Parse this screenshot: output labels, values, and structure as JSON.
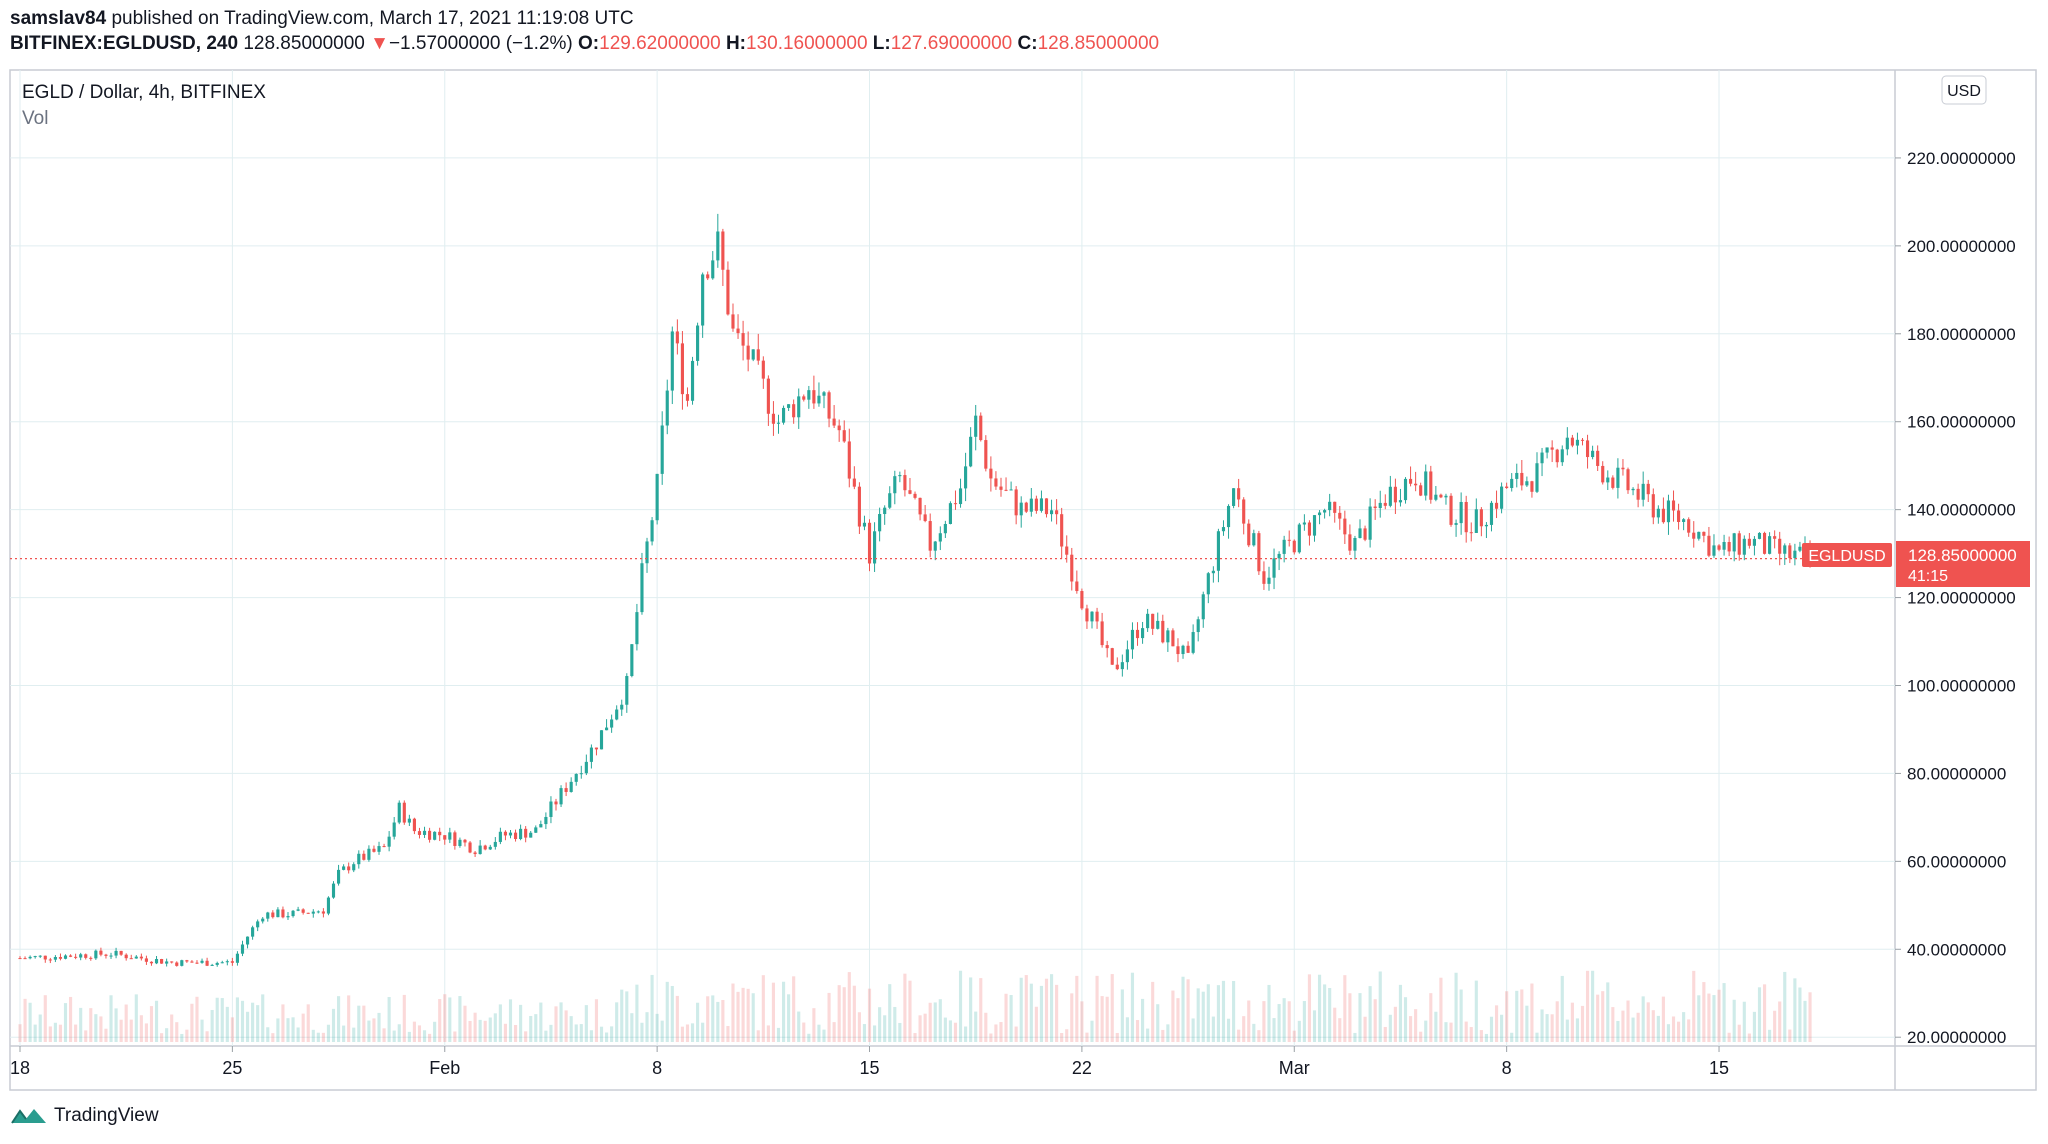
{
  "header": {
    "author": "samslav84",
    "published_text": "published on TradingView.com, March 17, 2021 11:19:08 UTC",
    "symbol": "BITFINEX:EGLDUSD, 240",
    "last": "128.85000000",
    "change_arrow": "▼",
    "change": "−1.57000000 (−1.2%)",
    "o_label": "O:",
    "o": "129.62000000",
    "h_label": "H:",
    "h": "130.16000000",
    "l_label": "L:",
    "l": "127.69000000",
    "c_label": "C:",
    "c": "128.85000000"
  },
  "pane": {
    "title": "EGLD / Dollar, 4h, BITFINEX",
    "vol_label": "Vol",
    "currency_button": "USD",
    "price_tag": "128.85000000",
    "countdown": "41:15",
    "symbol_tag": "EGLDUSD"
  },
  "logo": {
    "text": "TradingView"
  },
  "colors": {
    "up": "#26a69a",
    "down": "#ef5350",
    "grid": "#e0eef0",
    "text": "#131722"
  },
  "chart_data": {
    "type": "candlestick",
    "title": "EGLD / Dollar, 4h, BITFINEX",
    "y_ticks": [
      "220.00000000",
      "200.00000000",
      "180.00000000",
      "160.00000000",
      "140.00000000",
      "120.00000000",
      "100.00000000",
      "80.00000000",
      "60.00000000",
      "40.00000000",
      "20.00000000"
    ],
    "ylim": [
      18,
      240
    ],
    "x_ticks": [
      {
        "label": "18",
        "day": 0
      },
      {
        "label": "25",
        "day": 7
      },
      {
        "label": "Feb",
        "day": 14
      },
      {
        "label": "8",
        "day": 21
      },
      {
        "label": "15",
        "day": 28
      },
      {
        "label": "22",
        "day": 35
      },
      {
        "label": "Mar",
        "day": 42
      },
      {
        "label": "8",
        "day": 49
      },
      {
        "label": "15",
        "day": 56
      }
    ],
    "x_range_days": [
      0,
      61.8
    ],
    "last_close": 128.85,
    "grid": true,
    "series": [
      {
        "day": 0.0,
        "close": 38
      },
      {
        "day": 3.0,
        "close": 39
      },
      {
        "day": 5.0,
        "close": 37
      },
      {
        "day": 7.0,
        "close": 37
      },
      {
        "day": 7.5,
        "close": 43
      },
      {
        "day": 8.0,
        "close": 48
      },
      {
        "day": 9.0,
        "close": 48
      },
      {
        "day": 10.0,
        "close": 49
      },
      {
        "day": 10.5,
        "close": 57
      },
      {
        "day": 11.0,
        "close": 60
      },
      {
        "day": 12.0,
        "close": 63
      },
      {
        "day": 12.5,
        "close": 72
      },
      {
        "day": 13.0,
        "close": 67
      },
      {
        "day": 14.0,
        "close": 66
      },
      {
        "day": 15.0,
        "close": 63
      },
      {
        "day": 16.0,
        "close": 66
      },
      {
        "day": 17.0,
        "close": 67
      },
      {
        "day": 18.0,
        "close": 77
      },
      {
        "day": 19.0,
        "close": 87
      },
      {
        "day": 20.0,
        "close": 100
      },
      {
        "day": 20.5,
        "close": 125
      },
      {
        "day": 21.0,
        "close": 145
      },
      {
        "day": 21.5,
        "close": 180
      },
      {
        "day": 22.0,
        "close": 165
      },
      {
        "day": 22.5,
        "close": 195
      },
      {
        "day": 23.0,
        "close": 200
      },
      {
        "day": 23.5,
        "close": 180
      },
      {
        "day": 24.0,
        "close": 175
      },
      {
        "day": 25.0,
        "close": 160
      },
      {
        "day": 26.0,
        "close": 168
      },
      {
        "day": 27.0,
        "close": 158
      },
      {
        "day": 28.0,
        "close": 130
      },
      {
        "day": 28.5,
        "close": 140
      },
      {
        "day": 29.0,
        "close": 147
      },
      {
        "day": 30.0,
        "close": 132
      },
      {
        "day": 31.0,
        "close": 145
      },
      {
        "day": 31.5,
        "close": 160
      },
      {
        "day": 32.0,
        "close": 147
      },
      {
        "day": 33.0,
        "close": 140
      },
      {
        "day": 34.0,
        "close": 140
      },
      {
        "day": 35.0,
        "close": 120
      },
      {
        "day": 35.5,
        "close": 112
      },
      {
        "day": 36.0,
        "close": 103
      },
      {
        "day": 37.0,
        "close": 115
      },
      {
        "day": 38.0,
        "close": 110
      },
      {
        "day": 38.5,
        "close": 105
      },
      {
        "day": 39.0,
        "close": 120
      },
      {
        "day": 40.0,
        "close": 145
      },
      {
        "day": 41.0,
        "close": 125
      },
      {
        "day": 42.0,
        "close": 133
      },
      {
        "day": 43.0,
        "close": 140
      },
      {
        "day": 44.0,
        "close": 132
      },
      {
        "day": 45.0,
        "close": 143
      },
      {
        "day": 46.0,
        "close": 148
      },
      {
        "day": 47.0,
        "close": 140
      },
      {
        "day": 48.0,
        "close": 137
      },
      {
        "day": 49.0,
        "close": 145
      },
      {
        "day": 50.0,
        "close": 148
      },
      {
        "day": 51.0,
        "close": 157
      },
      {
        "day": 52.0,
        "close": 150
      },
      {
        "day": 53.0,
        "close": 145
      },
      {
        "day": 54.0,
        "close": 140
      },
      {
        "day": 55.0,
        "close": 137
      },
      {
        "day": 56.0,
        "close": 130
      },
      {
        "day": 57.0,
        "close": 133
      },
      {
        "day": 58.0,
        "close": 130
      },
      {
        "day": 59.0,
        "close": 128.85
      }
    ]
  }
}
